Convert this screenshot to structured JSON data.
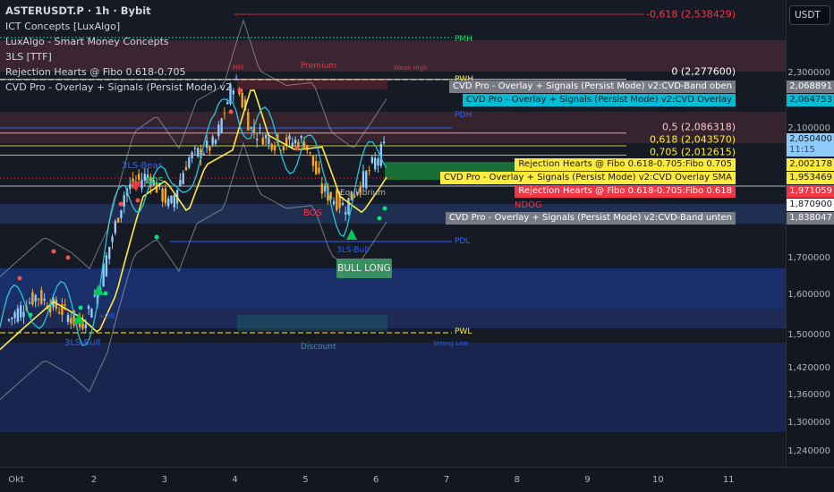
{
  "header": {
    "symbol": "ASTERUSDT.P · 1h · Bybit",
    "indicators": [
      "ICT Concepts [LuxAlgo]",
      "LuxAlgo - Smart Money Concepts",
      "3LS [TTF]",
      "Rejection Hearts @ Fibo 0.618-0.705",
      "CVD Pro - Overlay + Signals (Persist Mode) v2"
    ]
  },
  "currency": "USDT",
  "price_axis": {
    "scale": "log",
    "ticks": [
      "2,300000",
      "2,100000",
      "1,700000",
      "1,600000",
      "1,500000",
      "1,420000",
      "1,360000",
      "1,300000",
      "1,240000"
    ],
    "tick_values": [
      2.3,
      2.1,
      1.7,
      1.6,
      1.5,
      1.42,
      1.36,
      1.3,
      1.24
    ]
  },
  "time_axis": {
    "labels": [
      "Okt",
      "2",
      "3",
      "4",
      "5",
      "6",
      "7",
      "8",
      "9",
      "10",
      "11"
    ]
  },
  "fib_levels": [
    {
      "label": "-0,618 (2,538429)",
      "value": 2.538429,
      "color": "#f23645"
    },
    {
      "label": "0 (2,277600)",
      "value": 2.2776,
      "color": "#ffffff"
    },
    {
      "label": "0,5 (2,086318)",
      "value": 2.086318,
      "color": "#f8c8d0"
    },
    {
      "label": "0,618 (2,043570)",
      "value": 2.04357,
      "color": "#ffeb3b"
    },
    {
      "label": "0,705 (2,012615)",
      "value": 2.012615,
      "color": "#ffeb3b"
    }
  ],
  "price_tags": [
    {
      "name": "CVD Pro - Overlay + Signals (Persist Mode) v2:CVD-Band oben",
      "value": "2,068891",
      "bg": "#787b86",
      "fg": "#ffffff",
      "y": 2.26
    },
    {
      "name": "CVD Pro - Overlay + Signals (Persist Mode) v2:CVD Overlay",
      "value": "2,064753",
      "bg": "#00bcd4",
      "fg": "#131722",
      "y": 2.22
    },
    {
      "name": "Rejection Hearts @ Fibo 0.618-0.705:Fibo 0.705",
      "value": "2,002178",
      "bg": "#ffeb3b",
      "fg": "#131722",
      "y": 1.99
    },
    {
      "name": "CVD Pro - Overlay + Signals (Persist Mode) v2:CVD Overlay SMA",
      "value": "1,953469",
      "bg": "#ffeb3b",
      "fg": "#131722",
      "y": 1.945
    },
    {
      "name": "Rejection Hearts @ Fibo 0.618-0.705:Fibo 0.618",
      "value": "1,971059",
      "bg": "#f23645",
      "fg": "#ffffff",
      "y": 1.9
    },
    {
      "name": "",
      "value": "1,870900",
      "bg": "#ffffff",
      "fg": "#131722",
      "y": 1.857
    },
    {
      "name": "CVD Pro - Overlay + Signals (Persist Mode) v2:CVD-Band unten",
      "value": "1,838047",
      "bg": "#787b86",
      "fg": "#ffffff",
      "y": 1.815
    }
  ],
  "last_price": {
    "value": "2,050400",
    "countdown": "11:15",
    "bg": "#90caf9"
  },
  "chart_labels": {
    "pmh": "PMH",
    "pwh": "PWH",
    "pdh": "PDH",
    "pdl": "PDL",
    "pwl": "PWL",
    "premium": "Premium",
    "discount": "Discount",
    "equilibrium": "Equilibrium",
    "weak_high": "Weak High",
    "strong_low": "Strong Low",
    "hh": "HH",
    "ndog": "NDOG",
    "bos_green": "BOS",
    "bos_red": "BOS",
    "bear": "3LS-Bear",
    "bull1": "3LS-Bull",
    "bull2": "3LS-Bull",
    "ob": "+OB",
    "signal": "BULL LONG"
  },
  "colors": {
    "bull_candle": "#90caf9",
    "bear_candle": "#f5a623",
    "cvd": "#26c6da",
    "sma": "#ffeb3b",
    "band": "#b2b5be"
  }
}
